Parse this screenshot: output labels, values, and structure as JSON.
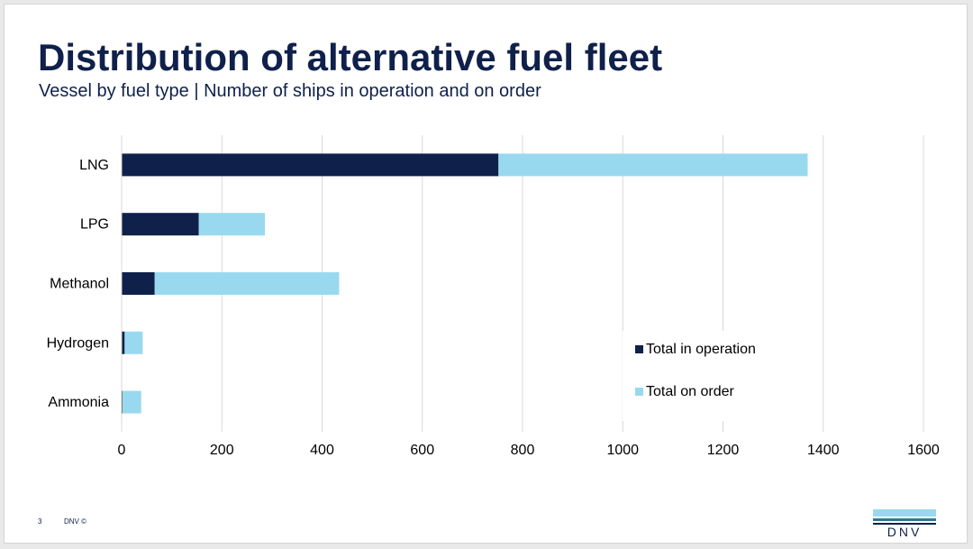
{
  "slide": {
    "title": "Distribution of alternative fuel fleet",
    "subtitle": "Vessel by fuel type | Number of ships in operation and on order"
  },
  "footer": {
    "page_number": "3",
    "copyright": "DNV ©",
    "logo_text": "DNV"
  },
  "colors": {
    "operation": "#0f204b",
    "order": "#99d9f0",
    "gridline": "#d9d9d9",
    "text": "#0f204b"
  },
  "chart_data": {
    "type": "bar",
    "orientation": "horizontal",
    "stacked": true,
    "categories": [
      "LNG",
      "LPG",
      "Methanol",
      "Hydrogen",
      "Ammonia"
    ],
    "series": [
      {
        "name": "Total in operation",
        "values": [
          752,
          154,
          66,
          6,
          2
        ]
      },
      {
        "name": "Total on order",
        "values": [
          617,
          132,
          368,
          36,
          37
        ]
      }
    ],
    "xlim": [
      0,
      1600
    ],
    "xticks": [
      "0",
      "200",
      "400",
      "600",
      "800",
      "1000",
      "1200",
      "1400",
      "1600"
    ],
    "grid": "vertical",
    "legend_position": "bottom-right, inside plot"
  }
}
